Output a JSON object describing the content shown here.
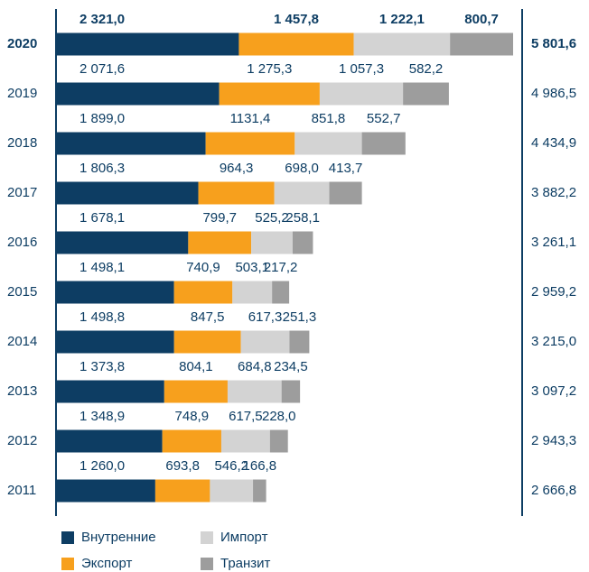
{
  "chart_data": {
    "type": "stacked-bar-horizontal",
    "categories": [
      "2020",
      "2019",
      "2018",
      "2017",
      "2016",
      "2015",
      "2014",
      "2013",
      "2012",
      "2011"
    ],
    "series": [
      {
        "name": "Внутренние",
        "color": "#0d3d63",
        "values": [
          2321.0,
          2071.6,
          1899.0,
          1806.3,
          1678.1,
          1498.1,
          1498.8,
          1373.8,
          1348.9,
          1260.0
        ],
        "value_labels": [
          "2 321,0",
          "2 071,6",
          "1 899,0",
          "1 806,3",
          "1 678,1",
          "1 498,1",
          "1 498,8",
          "1 373,8",
          "1 348,9",
          "1 260,0"
        ]
      },
      {
        "name": "Экспорт",
        "color": "#f7a01d",
        "values": [
          1457.8,
          1275.3,
          1131.4,
          964.3,
          799.7,
          740.9,
          847.5,
          804.1,
          748.9,
          693.8
        ],
        "value_labels": [
          "1 457,8",
          "1 275,3",
          "1131,4",
          "964,3",
          "799,7",
          "740,9",
          "847,5",
          "804,1",
          "748,9",
          "693,8"
        ]
      },
      {
        "name": "Импорт",
        "color": "#d3d3d3",
        "values": [
          1222.1,
          1057.3,
          851.8,
          698.0,
          525.2,
          503.1,
          617.3,
          684.8,
          617.5,
          546.2
        ],
        "value_labels": [
          "1 222,1",
          "1 057,3",
          "851,8",
          "698,0",
          "525,2",
          "503,1",
          "617,3",
          "684,8",
          "617,5",
          "546,2"
        ]
      },
      {
        "name": "Транзит",
        "color": "#9d9d9d",
        "values": [
          800.7,
          582.2,
          552.7,
          413.7,
          258.1,
          217.2,
          251.3,
          234.5,
          228.0,
          166.8
        ],
        "value_labels": [
          "800,7",
          "582,2",
          "552,7",
          "413,7",
          "258,1",
          "217,2",
          "251,3",
          "234,5",
          "228,0",
          "166,8"
        ]
      }
    ],
    "totals": {
      "values": [
        5801.6,
        4986.5,
        4434.9,
        3882.2,
        3261.1,
        2959.2,
        3215.0,
        3097.2,
        2943.3,
        2666.8
      ],
      "value_labels": [
        "5 801,6",
        "4 986,5",
        "4 434,9",
        "3 882,2",
        "3 261,1",
        "2 959,2",
        "3 215,0",
        "3 097,2",
        "2 943,3",
        "2 666,8"
      ]
    }
  }
}
